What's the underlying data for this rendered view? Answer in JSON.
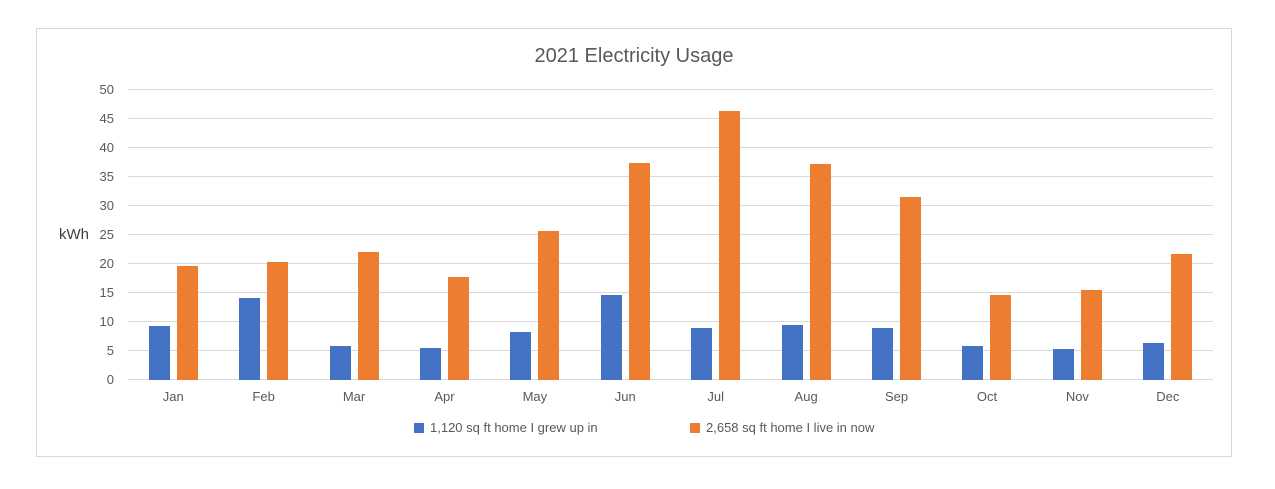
{
  "title": "2021 Electricity Usage",
  "colors": {
    "series1": "#4472C4",
    "series2": "#ED7D31",
    "grid": "#D9D9D9",
    "text": "#595959",
    "frame_border": "#D9D9D9"
  },
  "chart_data": {
    "type": "bar",
    "title": "2021 Electricity Usage",
    "xlabel": "",
    "ylabel": "kWh",
    "ylim": [
      0,
      50
    ],
    "ytick_step": 5,
    "yticks": [
      0,
      5,
      10,
      15,
      20,
      25,
      30,
      35,
      40,
      45,
      50
    ],
    "grid": true,
    "legend_position": "bottom",
    "categories": [
      "Jan",
      "Feb",
      "Mar",
      "Apr",
      "May",
      "Jun",
      "Jul",
      "Aug",
      "Sep",
      "Oct",
      "Nov",
      "Dec"
    ],
    "series": [
      {
        "name": "1,120 sq ft home I grew up in",
        "color": "#4472C4",
        "values": [
          9.3,
          14.1,
          5.9,
          5.6,
          8.3,
          14.7,
          8.9,
          9.4,
          9.0,
          5.9,
          5.3,
          6.4
        ]
      },
      {
        "name": "2,658 sq ft home I live in now",
        "color": "#ED7D31",
        "values": [
          19.7,
          20.4,
          22.1,
          17.8,
          25.7,
          37.5,
          46.4,
          37.2,
          31.6,
          14.7,
          15.6,
          21.8
        ]
      }
    ]
  }
}
